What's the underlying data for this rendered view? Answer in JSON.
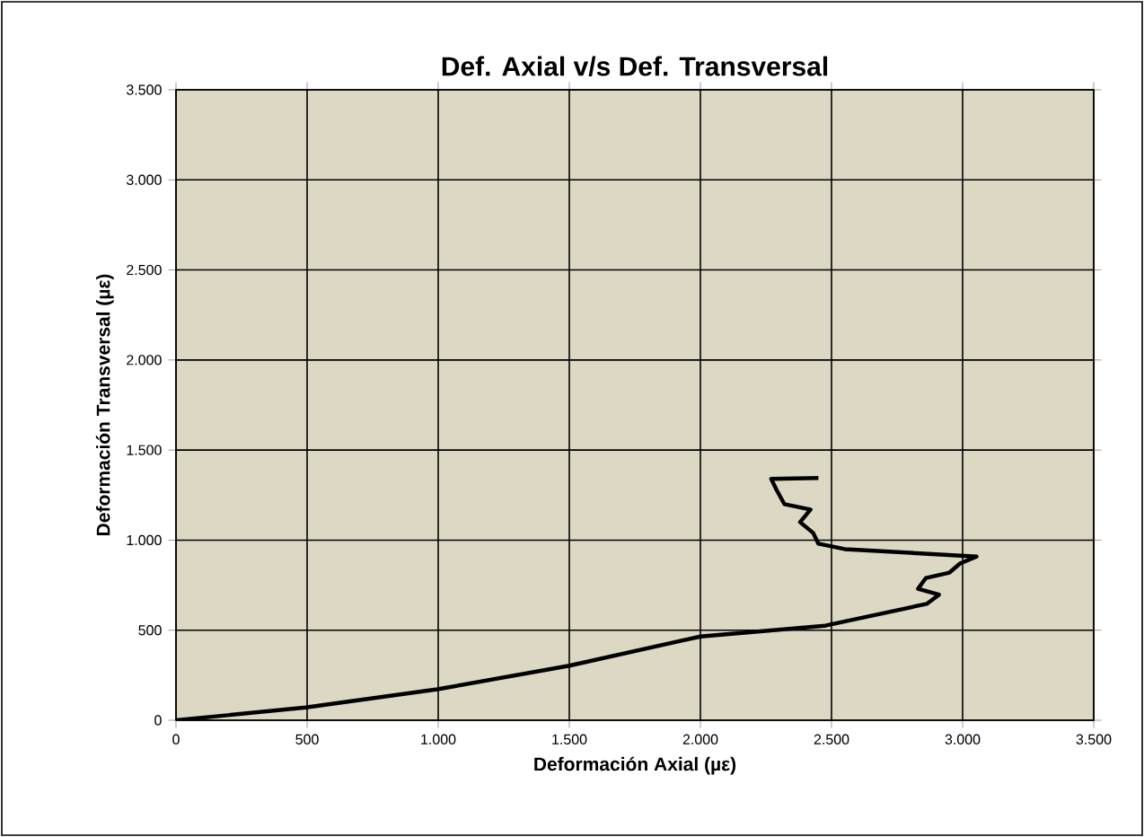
{
  "chart_data": {
    "type": "line",
    "title": "Def. Axial v/s Def. Transversal",
    "xlabel": "Deformación Axial (µε)",
    "ylabel": "Deformación Transversal (µε)",
    "grid": true,
    "marker": "none",
    "line_style": "solid",
    "xlim": [
      0,
      3500
    ],
    "ylim": [
      0,
      3500
    ],
    "xticks": [
      0,
      500,
      {
        "value": 1000,
        "label": "1.000"
      },
      {
        "value": 1500,
        "label": "1.500"
      },
      {
        "value": 2000,
        "label": "2.000"
      },
      {
        "value": 2500,
        "label": "2.500"
      },
      {
        "value": 3000,
        "label": "3.000"
      },
      {
        "value": 3500,
        "label": "3.500"
      }
    ],
    "yticks": [
      0,
      500,
      {
        "value": 1000,
        "label": "1.000"
      },
      {
        "value": 1500,
        "label": "1.500"
      },
      {
        "value": 2000,
        "label": "2.000"
      },
      {
        "value": 2500,
        "label": "2.500"
      },
      {
        "value": 3000,
        "label": "3.000"
      },
      {
        "value": 3500,
        "label": "3.500"
      }
    ],
    "series": [
      {
        "color": "#000000",
        "x": [
          0,
          495,
          997,
          1500,
          2000,
          2476,
          2863,
          2910,
          2830,
          2860,
          2950,
          2990,
          3053,
          2550,
          2450,
          2430,
          2380,
          2420,
          2320,
          2290,
          2270,
          2450
        ],
        "values": [
          0,
          71,
          172,
          303,
          465,
          525,
          646,
          697,
          730,
          790,
          820,
          870,
          909,
          950,
          980,
          1040,
          1100,
          1170,
          1200,
          1280,
          1340,
          1345
        ]
      }
    ]
  }
}
